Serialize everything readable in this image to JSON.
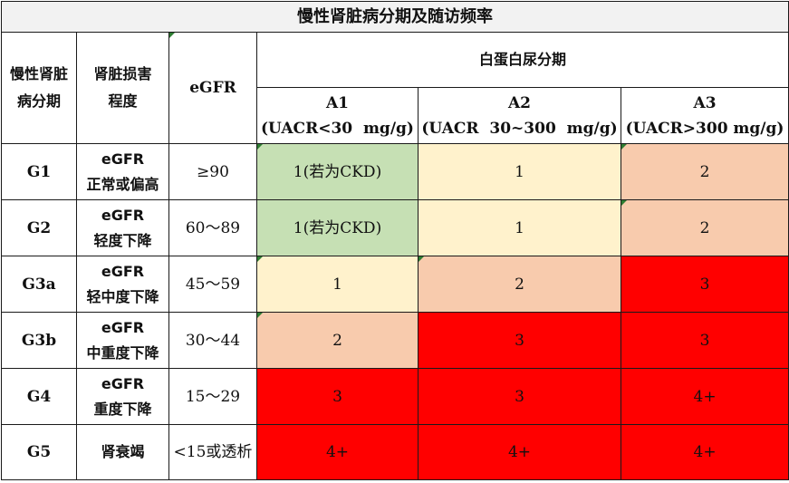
{
  "title": "慢性肾脏病分期及随访频率",
  "header": {
    "stage_lines": [
      "慢性肾脏",
      "病分期"
    ],
    "damage_lines": [
      "肾脏损害",
      "程度"
    ],
    "egfr": "eGFR",
    "albuminuria": "白蛋白尿分期",
    "categories": [
      {
        "code": "A1",
        "range": "(UACR<30  mg/g)"
      },
      {
        "code": "A2",
        "range": "(UACR  30~300  mg/g)"
      },
      {
        "code": "A3",
        "range": "(UACR>300 mg/g)"
      }
    ]
  },
  "colors": {
    "green": "#c6e0b4",
    "light_yellow": "#fff2cc",
    "peach": "#f8cbad",
    "red": "#ff0000"
  },
  "rows": [
    {
      "stage": "G1",
      "desc": [
        "eGFR",
        "正常或偏高"
      ],
      "egfr": "≥90",
      "cells": [
        {
          "v": "1(若为CKD)",
          "c": "#c6e0b4"
        },
        {
          "v": "1",
          "c": "#fff2cc"
        },
        {
          "v": "2",
          "c": "#f8cbad"
        }
      ]
    },
    {
      "stage": "G2",
      "desc": [
        "eGFR",
        "轻度下降"
      ],
      "egfr": "60～89",
      "cells": [
        {
          "v": "1(若为CKD)",
          "c": "#c6e0b4"
        },
        {
          "v": "1",
          "c": "#fff2cc"
        },
        {
          "v": "2",
          "c": "#f8cbad"
        }
      ]
    },
    {
      "stage": "G3a",
      "desc": [
        "eGFR",
        "轻中度下降"
      ],
      "egfr": "45～59",
      "cells": [
        {
          "v": "1",
          "c": "#fff2cc"
        },
        {
          "v": "2",
          "c": "#f8cbad"
        },
        {
          "v": "3",
          "c": "#ff0000"
        }
      ]
    },
    {
      "stage": "G3b",
      "desc": [
        "eGFR",
        "中重度下降"
      ],
      "egfr": "30～44",
      "cells": [
        {
          "v": "2",
          "c": "#f8cbad"
        },
        {
          "v": "3",
          "c": "#ff0000"
        },
        {
          "v": "3",
          "c": "#ff0000"
        }
      ]
    },
    {
      "stage": "G4",
      "desc": [
        "eGFR",
        "重度下降"
      ],
      "egfr": "15～29",
      "cells": [
        {
          "v": "3",
          "c": "#ff0000"
        },
        {
          "v": "3",
          "c": "#ff0000"
        },
        {
          "v": "4+",
          "c": "#ff0000"
        }
      ]
    },
    {
      "stage": "G5",
      "desc": [
        "肾衰竭"
      ],
      "egfr": "<15或透析",
      "cells": [
        {
          "v": "4+",
          "c": "#ff0000"
        },
        {
          "v": "4+",
          "c": "#ff0000"
        },
        {
          "v": "4+",
          "c": "#ff0000"
        }
      ]
    }
  ]
}
